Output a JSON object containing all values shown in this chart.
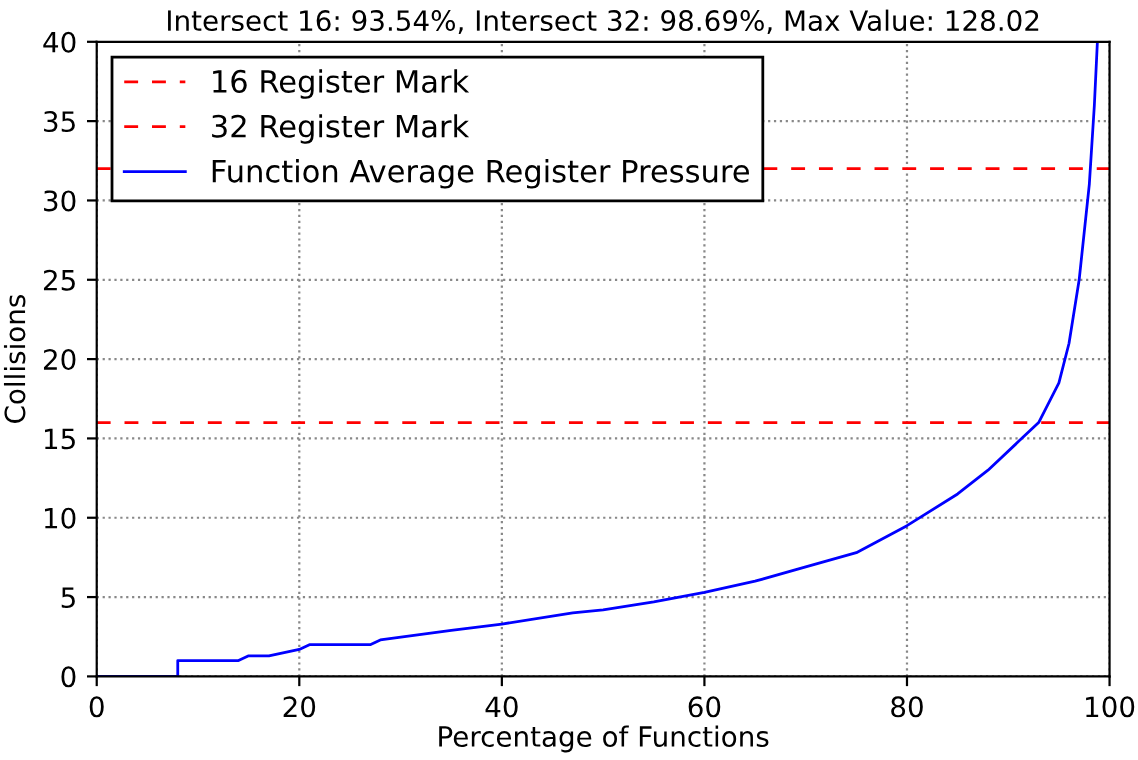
{
  "chart_data": {
    "type": "line",
    "title": "Intersect 16: 93.54%, Intersect 32: 98.69%, Max Value: 128.02",
    "xlabel": "Percentage of Functions",
    "ylabel": "Collisions",
    "xlim": [
      0,
      100
    ],
    "ylim": [
      0,
      40
    ],
    "xticks": [
      0,
      20,
      40,
      60,
      80,
      100
    ],
    "yticks": [
      0,
      5,
      10,
      15,
      20,
      25,
      30,
      35,
      40
    ],
    "grid": true,
    "legend": "top left",
    "ref_lines": [
      {
        "axis": "y",
        "value": 16,
        "label": "16 Register Mark",
        "color": "#ff0000",
        "line_style": "dashed"
      },
      {
        "axis": "y",
        "value": 32,
        "label": "32 Register Mark",
        "color": "#ff0000",
        "line_style": "dashed"
      }
    ],
    "series": [
      {
        "name": "Function Average Register Pressure",
        "color": "#0000ff",
        "x": [
          0,
          8,
          8,
          14,
          15,
          17,
          20,
          21,
          27,
          28,
          35,
          40,
          47,
          50,
          55,
          60,
          65,
          70,
          75,
          80,
          85,
          88,
          91,
          93,
          95,
          96,
          97,
          98,
          98.5,
          98.8
        ],
        "values": [
          0,
          0,
          1,
          1,
          1.3,
          1.3,
          1.7,
          2,
          2,
          2.3,
          2.9,
          3.3,
          4,
          4.2,
          4.7,
          5.3,
          6,
          6.9,
          7.8,
          9.5,
          11.5,
          13,
          14.8,
          16,
          18.5,
          21,
          25,
          31,
          36,
          40
        ]
      }
    ]
  }
}
